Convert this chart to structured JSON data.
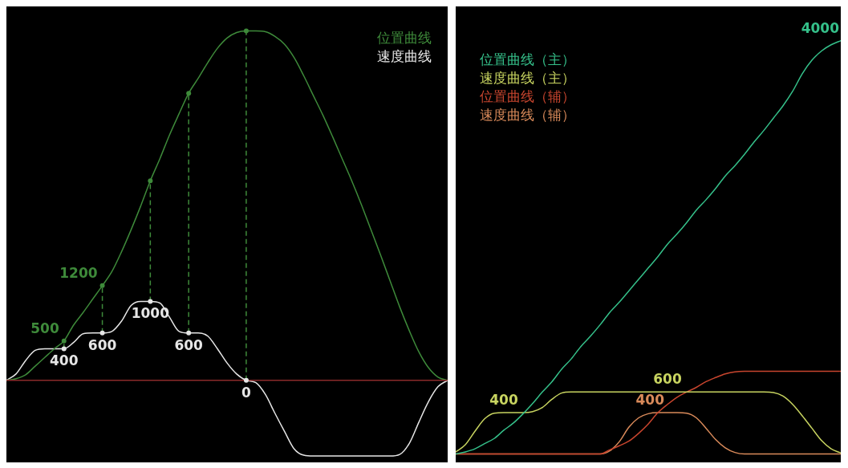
{
  "chart_data": [
    {
      "type": "line",
      "categories": [
        null,
        null,
        null,
        null,
        null,
        null,
        null,
        null,
        null,
        null,
        null,
        null,
        null,
        null,
        null,
        null,
        null,
        null,
        null,
        null,
        null,
        null,
        null,
        null,
        null,
        null,
        null,
        null,
        null,
        null,
        null,
        null,
        null,
        null,
        null,
        null,
        null,
        null,
        null,
        null,
        null,
        null,
        null,
        null,
        null,
        null,
        null
      ],
      "ylim": [
        -1000,
        4700
      ],
      "legend": "top right",
      "ref_lines": [
        {
          "axis": "y",
          "value": 0,
          "color": "#8b2a2a"
        }
      ],
      "series": [
        {
          "name": "位置曲线",
          "color": "#3e8a3a",
          "values": [
            0,
            20,
            70,
            180,
            290,
            400,
            500,
            700,
            860,
            1030,
            1200,
            1380,
            1630,
            1910,
            2210,
            2530,
            2810,
            3110,
            3380,
            3640,
            3830,
            4030,
            4210,
            4340,
            4410,
            4430,
            4430,
            4420,
            4360,
            4260,
            4090,
            3860,
            3610,
            3360,
            3090,
            2810,
            2530,
            2230,
            1910,
            1590,
            1260,
            930,
            630,
            360,
            160,
            40,
            0
          ],
          "value_labels": [
            null,
            null,
            null,
            null,
            null,
            null,
            "500",
            null,
            null,
            null,
            "1200",
            null,
            null,
            null,
            null,
            null,
            null,
            null,
            null,
            null,
            null,
            null,
            null,
            null,
            null,
            null,
            null,
            null,
            null,
            null,
            null,
            null,
            null,
            null,
            null,
            null,
            null,
            null,
            null,
            null,
            null,
            null,
            null,
            null,
            null,
            null,
            null
          ]
        },
        {
          "name": "速度曲线",
          "color": "#e6e6e6",
          "values": [
            0,
            80,
            250,
            380,
            400,
            400,
            400,
            480,
            590,
            600,
            600,
            620,
            750,
            950,
            1000,
            1000,
            980,
            800,
            620,
            600,
            600,
            560,
            400,
            220,
            80,
            0,
            -30,
            -180,
            -420,
            -650,
            -870,
            -950,
            -960,
            -960,
            -960,
            -960,
            -960,
            -960,
            -960,
            -960,
            -960,
            -940,
            -800,
            -530,
            -270,
            -80,
            0
          ],
          "value_labels": [
            null,
            null,
            null,
            null,
            null,
            null,
            "400",
            null,
            null,
            null,
            "600",
            null,
            null,
            null,
            null,
            "1000",
            null,
            null,
            null,
            "600",
            null,
            null,
            null,
            null,
            null,
            "0",
            null,
            null,
            null,
            null,
            null,
            null,
            null,
            null,
            null,
            null,
            null,
            null,
            null,
            null,
            null,
            null,
            null,
            null,
            null,
            null,
            null
          ]
        }
      ]
    },
    {
      "type": "line",
      "categories": [
        null,
        null,
        null,
        null,
        null,
        null,
        null,
        null,
        null,
        null,
        null,
        null,
        null,
        null,
        null,
        null,
        null,
        null,
        null,
        null,
        null,
        null,
        null,
        null,
        null,
        null,
        null,
        null,
        null,
        null,
        null,
        null,
        null,
        null,
        null,
        null,
        null,
        null,
        null,
        null,
        null
      ],
      "ylim": [
        -50,
        4300
      ],
      "legend": "top left",
      "series": [
        {
          "name": "位置曲线（主）",
          "color": "#35c08a",
          "values": [
            0,
            20,
            50,
            100,
            150,
            230,
            300,
            390,
            490,
            600,
            700,
            820,
            920,
            1040,
            1140,
            1250,
            1370,
            1470,
            1580,
            1690,
            1800,
            1910,
            2030,
            2130,
            2240,
            2360,
            2460,
            2570,
            2690,
            2790,
            2900,
            3020,
            3130,
            3250,
            3370,
            3510,
            3680,
            3810,
            3900,
            3960,
            4000
          ],
          "value_labels": [
            null,
            null,
            null,
            null,
            null,
            null,
            null,
            null,
            null,
            null,
            null,
            null,
            null,
            null,
            null,
            null,
            null,
            null,
            null,
            null,
            null,
            null,
            null,
            null,
            null,
            null,
            null,
            null,
            null,
            null,
            null,
            null,
            null,
            null,
            null,
            null,
            null,
            null,
            null,
            null,
            "4000"
          ]
        },
        {
          "name": "速度曲线（主）",
          "color": "#c8d460",
          "values": [
            20,
            90,
            220,
            340,
            395,
            400,
            400,
            400,
            410,
            450,
            530,
            590,
            600,
            600,
            600,
            600,
            600,
            600,
            600,
            600,
            600,
            600,
            600,
            600,
            600,
            600,
            600,
            600,
            600,
            600,
            600,
            600,
            600,
            595,
            560,
            480,
            370,
            250,
            130,
            50,
            10
          ],
          "value_labels": [
            null,
            null,
            null,
            null,
            null,
            "400",
            null,
            null,
            null,
            null,
            null,
            null,
            null,
            null,
            null,
            null,
            null,
            null,
            null,
            null,
            null,
            null,
            "600",
            null,
            null,
            null,
            null,
            null,
            null,
            null,
            null,
            null,
            null,
            null,
            null,
            null,
            null,
            null,
            null,
            null,
            null
          ]
        },
        {
          "name": "位置曲线（辅）",
          "color": "#c8452e",
          "values": [
            0,
            0,
            0,
            0,
            0,
            0,
            0,
            0,
            0,
            0,
            0,
            0,
            0,
            0,
            0,
            0,
            40,
            80,
            125,
            200,
            290,
            400,
            480,
            550,
            600,
            645,
            700,
            740,
            775,
            795,
            800,
            800,
            800,
            800,
            800,
            800,
            800,
            800,
            800,
            800,
            800
          ]
        },
        {
          "name": "速度曲线（辅）",
          "color": "#d98a5a",
          "values": [
            0,
            0,
            0,
            0,
            0,
            0,
            0,
            0,
            0,
            0,
            0,
            0,
            0,
            0,
            0,
            0,
            30,
            120,
            260,
            350,
            390,
            400,
            400,
            400,
            395,
            350,
            250,
            140,
            60,
            15,
            0,
            0,
            0,
            0,
            0,
            0,
            0,
            0,
            0,
            0,
            0
          ],
          "value_labels": [
            null,
            null,
            null,
            null,
            null,
            null,
            null,
            null,
            null,
            null,
            null,
            null,
            null,
            null,
            null,
            null,
            null,
            null,
            null,
            null,
            null,
            null,
            "400",
            null,
            null,
            null,
            null,
            null,
            null,
            null,
            null,
            null,
            null,
            null,
            null,
            null,
            null,
            null,
            null,
            null,
            null
          ]
        }
      ]
    }
  ]
}
